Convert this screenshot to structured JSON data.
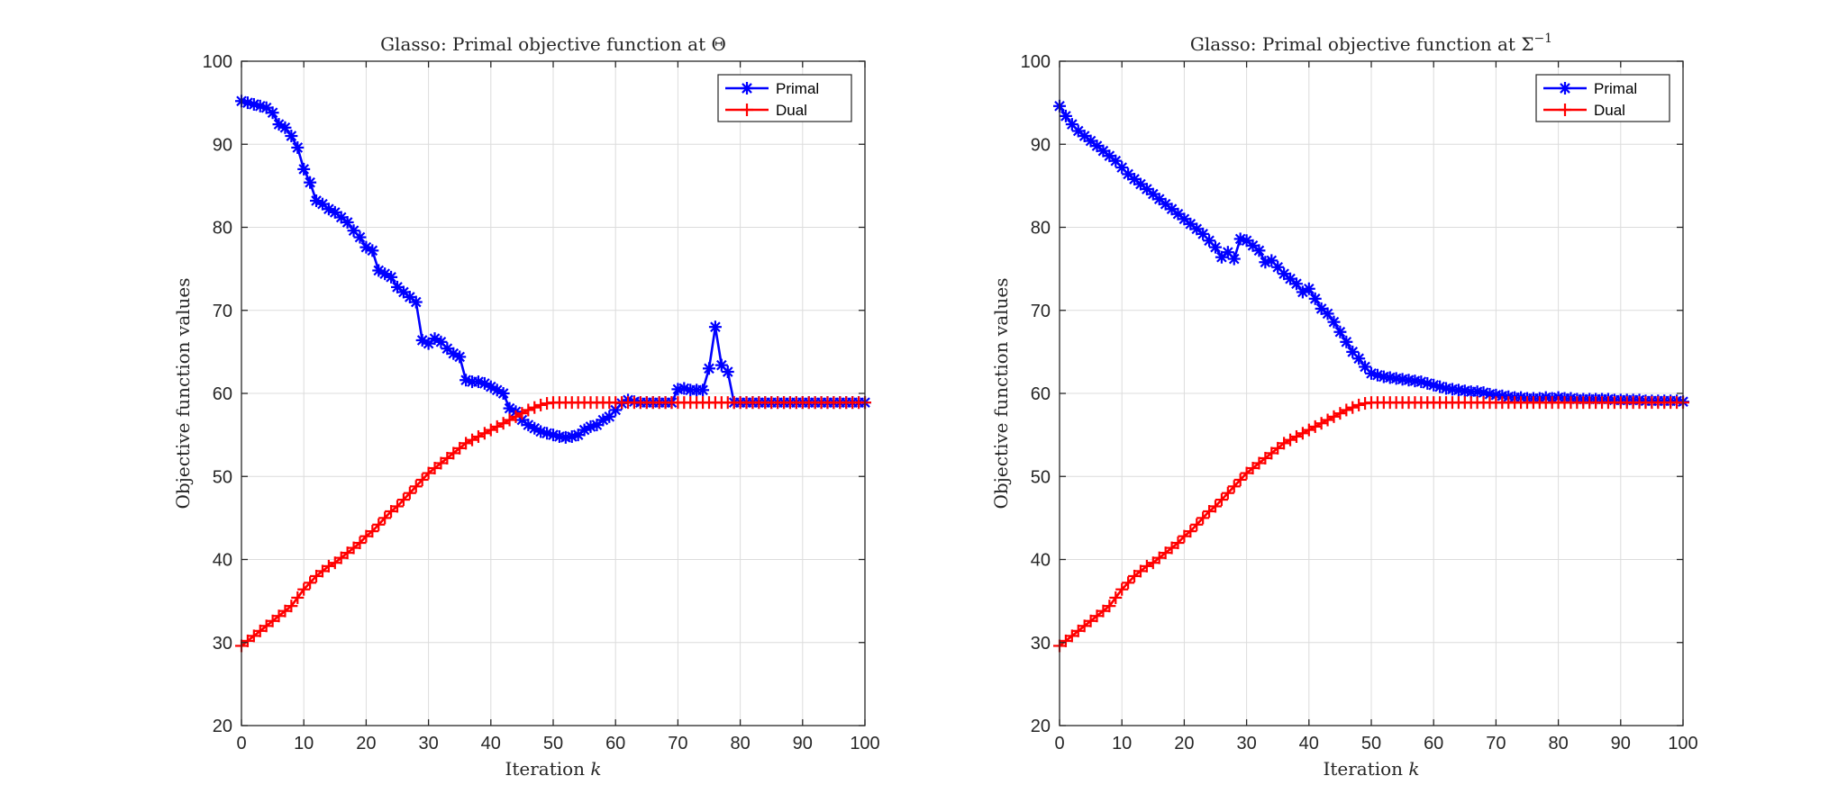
{
  "chart_data": [
    {
      "type": "line",
      "title": "Glasso: Primal objective function at Θ",
      "title_prefix": "Glasso: Primal objective function at ",
      "title_symbol": "Θ",
      "title_sup": "",
      "xlabel_prefix": "Iteration ",
      "xlabel_var": "k",
      "ylabel": "Objective function values",
      "xlim": [
        0,
        100
      ],
      "ylim": [
        20,
        100
      ],
      "xticks": [
        0,
        10,
        20,
        30,
        40,
        50,
        60,
        70,
        80,
        90,
        100
      ],
      "yticks": [
        20,
        30,
        40,
        50,
        60,
        70,
        80,
        90,
        100
      ],
      "grid": true,
      "legend_position": "top-right",
      "series": [
        {
          "name": "Primal",
          "color": "#0000ff",
          "marker": "asterisk",
          "x": [
            0,
            1,
            2,
            3,
            4,
            5,
            6,
            7,
            8,
            9,
            10,
            11,
            12,
            13,
            14,
            15,
            16,
            17,
            18,
            19,
            20,
            21,
            22,
            23,
            24,
            25,
            26,
            27,
            28,
            29,
            30,
            31,
            32,
            33,
            34,
            35,
            36,
            37,
            38,
            39,
            40,
            41,
            42,
            43,
            44,
            45,
            46,
            47,
            48,
            49,
            50,
            51,
            52,
            53,
            54,
            55,
            56,
            57,
            58,
            59,
            60,
            61,
            62,
            63,
            64,
            65,
            66,
            67,
            68,
            69,
            70,
            71,
            72,
            73,
            74,
            75,
            76,
            77,
            78,
            79,
            80,
            81,
            82,
            83,
            84,
            85,
            86,
            87,
            88,
            89,
            90,
            91,
            92,
            93,
            94,
            95,
            96,
            97,
            98,
            99,
            100
          ],
          "y": [
            95.2,
            95.0,
            94.8,
            94.6,
            94.4,
            93.8,
            92.4,
            92.0,
            91.0,
            89.6,
            87.0,
            85.4,
            83.2,
            82.8,
            82.2,
            81.8,
            81.2,
            80.6,
            79.6,
            78.8,
            77.6,
            77.2,
            74.8,
            74.4,
            74.0,
            72.8,
            72.2,
            71.6,
            71.0,
            66.4,
            66.0,
            66.6,
            66.2,
            65.4,
            64.8,
            64.4,
            61.6,
            61.4,
            61.4,
            61.2,
            60.8,
            60.4,
            60.0,
            58.2,
            57.8,
            56.8,
            56.2,
            55.8,
            55.4,
            55.2,
            55.0,
            54.8,
            54.7,
            54.8,
            55.0,
            55.6,
            56.0,
            56.2,
            56.8,
            57.2,
            58.0,
            58.8,
            59.2,
            59.0,
            58.9,
            58.9,
            58.9,
            58.9,
            58.9,
            58.9,
            60.5,
            60.6,
            60.4,
            60.4,
            60.4,
            63.0,
            68.0,
            63.4,
            62.6,
            58.9,
            58.9,
            58.9,
            58.9,
            58.9,
            58.9,
            58.9,
            58.9,
            58.9,
            58.9,
            58.9,
            58.9,
            58.9,
            58.9,
            58.9,
            58.9,
            58.9,
            58.9,
            58.9,
            58.9,
            58.9,
            58.9
          ]
        },
        {
          "name": "Dual",
          "color": "#ff0000",
          "marker": "plus",
          "x": [
            0,
            1,
            2,
            3,
            4,
            5,
            6,
            7,
            8,
            9,
            10,
            11,
            12,
            13,
            14,
            15,
            16,
            17,
            18,
            19,
            20,
            21,
            22,
            23,
            24,
            25,
            26,
            27,
            28,
            29,
            30,
            31,
            32,
            33,
            34,
            35,
            36,
            37,
            38,
            39,
            40,
            41,
            42,
            43,
            44,
            45,
            46,
            47,
            48,
            49,
            50,
            51,
            52,
            53,
            54,
            55,
            56,
            57,
            58,
            59,
            60,
            61,
            62,
            63,
            64,
            65,
            66,
            67,
            68,
            69,
            70,
            71,
            72,
            73,
            74,
            75,
            76,
            77,
            78,
            79,
            80,
            81,
            82,
            83,
            84,
            85,
            86,
            87,
            88,
            89,
            90,
            91,
            92,
            93,
            94,
            95,
            96,
            97,
            98,
            99,
            100
          ],
          "y": [
            29.6,
            30.2,
            30.8,
            31.4,
            32.0,
            32.6,
            33.2,
            33.8,
            34.4,
            35.4,
            36.4,
            37.2,
            38.0,
            38.6,
            39.2,
            39.6,
            40.2,
            40.8,
            41.4,
            42.0,
            42.8,
            43.4,
            44.2,
            45.0,
            45.8,
            46.4,
            47.2,
            48.0,
            48.8,
            49.6,
            50.4,
            51.0,
            51.6,
            52.2,
            52.8,
            53.4,
            54.0,
            54.4,
            54.8,
            55.2,
            55.6,
            56.0,
            56.4,
            56.8,
            57.2,
            57.6,
            58.0,
            58.3,
            58.6,
            58.8,
            58.9,
            58.9,
            58.9,
            58.9,
            58.9,
            58.9,
            58.9,
            58.9,
            58.9,
            58.9,
            58.9,
            58.9,
            58.9,
            58.9,
            58.9,
            58.9,
            58.9,
            58.9,
            58.9,
            58.9,
            58.9,
            58.9,
            58.9,
            58.9,
            58.9,
            58.9,
            58.9,
            58.9,
            58.9,
            58.9,
            58.9,
            58.9,
            58.9,
            58.9,
            58.9,
            58.9,
            58.9,
            58.9,
            58.9,
            58.9,
            58.9,
            58.9,
            58.9,
            58.9,
            58.9,
            58.9,
            58.9,
            58.9,
            58.9,
            58.9,
            58.9
          ]
        }
      ]
    },
    {
      "type": "line",
      "title": "Glasso: Primal objective function at Σ⁻¹",
      "title_prefix": "Glasso: Primal objective function at ",
      "title_symbol": "Σ",
      "title_sup": "−1",
      "xlabel_prefix": "Iteration ",
      "xlabel_var": "k",
      "ylabel": "Objective function values",
      "xlim": [
        0,
        100
      ],
      "ylim": [
        20,
        100
      ],
      "xticks": [
        0,
        10,
        20,
        30,
        40,
        50,
        60,
        70,
        80,
        90,
        100
      ],
      "yticks": [
        20,
        30,
        40,
        50,
        60,
        70,
        80,
        90,
        100
      ],
      "grid": true,
      "legend_position": "top-right",
      "series": [
        {
          "name": "Primal",
          "color": "#0000ff",
          "marker": "asterisk",
          "x": [
            0,
            1,
            2,
            3,
            4,
            5,
            6,
            7,
            8,
            9,
            10,
            11,
            12,
            13,
            14,
            15,
            16,
            17,
            18,
            19,
            20,
            21,
            22,
            23,
            24,
            25,
            26,
            27,
            28,
            29,
            30,
            31,
            32,
            33,
            34,
            35,
            36,
            37,
            38,
            39,
            40,
            41,
            42,
            43,
            44,
            45,
            46,
            47,
            48,
            49,
            50,
            51,
            52,
            53,
            54,
            55,
            56,
            57,
            58,
            59,
            60,
            61,
            62,
            63,
            64,
            65,
            66,
            67,
            68,
            69,
            70,
            71,
            72,
            73,
            74,
            75,
            76,
            77,
            78,
            79,
            80,
            81,
            82,
            83,
            84,
            85,
            86,
            87,
            88,
            89,
            90,
            91,
            92,
            93,
            94,
            95,
            96,
            97,
            98,
            99,
            100
          ],
          "y": [
            94.6,
            93.4,
            92.4,
            91.6,
            91.0,
            90.4,
            89.8,
            89.2,
            88.6,
            88.0,
            87.2,
            86.4,
            85.8,
            85.2,
            84.6,
            84.0,
            83.4,
            82.8,
            82.2,
            81.6,
            81.0,
            80.4,
            79.8,
            79.2,
            78.4,
            77.6,
            76.4,
            77.0,
            76.2,
            78.6,
            78.4,
            77.8,
            77.2,
            75.8,
            76.0,
            75.2,
            74.4,
            73.8,
            73.2,
            72.2,
            72.6,
            71.4,
            70.2,
            69.6,
            68.6,
            67.4,
            66.2,
            65.0,
            64.2,
            63.2,
            62.4,
            62.2,
            62.0,
            61.9,
            61.8,
            61.7,
            61.6,
            61.5,
            61.4,
            61.2,
            61.0,
            60.8,
            60.6,
            60.5,
            60.4,
            60.3,
            60.2,
            60.2,
            60.1,
            59.9,
            59.8,
            59.7,
            59.6,
            59.5,
            59.5,
            59.4,
            59.4,
            59.4,
            59.5,
            59.4,
            59.5,
            59.4,
            59.4,
            59.3,
            59.3,
            59.3,
            59.3,
            59.3,
            59.3,
            59.2,
            59.2,
            59.2,
            59.2,
            59.2,
            59.1,
            59.1,
            59.1,
            59.1,
            59.1,
            59.1,
            59.0
          ]
        },
        {
          "name": "Dual",
          "color": "#ff0000",
          "marker": "plus",
          "x": [
            0,
            1,
            2,
            3,
            4,
            5,
            6,
            7,
            8,
            9,
            10,
            11,
            12,
            13,
            14,
            15,
            16,
            17,
            18,
            19,
            20,
            21,
            22,
            23,
            24,
            25,
            26,
            27,
            28,
            29,
            30,
            31,
            32,
            33,
            34,
            35,
            36,
            37,
            38,
            39,
            40,
            41,
            42,
            43,
            44,
            45,
            46,
            47,
            48,
            49,
            50,
            51,
            52,
            53,
            54,
            55,
            56,
            57,
            58,
            59,
            60,
            61,
            62,
            63,
            64,
            65,
            66,
            67,
            68,
            69,
            70,
            71,
            72,
            73,
            74,
            75,
            76,
            77,
            78,
            79,
            80,
            81,
            82,
            83,
            84,
            85,
            86,
            87,
            88,
            89,
            90,
            91,
            92,
            93,
            94,
            95,
            96,
            97,
            98,
            99,
            100
          ],
          "y": [
            29.6,
            30.2,
            30.8,
            31.4,
            32.0,
            32.6,
            33.2,
            33.8,
            34.4,
            35.4,
            36.4,
            37.2,
            38.0,
            38.6,
            39.2,
            39.6,
            40.2,
            40.8,
            41.4,
            42.0,
            42.8,
            43.4,
            44.2,
            45.0,
            45.8,
            46.4,
            47.2,
            48.0,
            48.8,
            49.6,
            50.4,
            51.0,
            51.6,
            52.2,
            52.8,
            53.4,
            54.0,
            54.4,
            54.8,
            55.2,
            55.6,
            56.0,
            56.4,
            56.8,
            57.2,
            57.6,
            58.0,
            58.3,
            58.6,
            58.8,
            58.9,
            58.9,
            58.9,
            58.9,
            58.9,
            58.9,
            58.9,
            58.9,
            58.9,
            58.9,
            58.9,
            58.9,
            58.9,
            58.9,
            58.9,
            58.9,
            58.9,
            58.9,
            58.9,
            58.9,
            58.9,
            58.9,
            58.9,
            58.9,
            58.9,
            58.9,
            58.9,
            58.9,
            58.9,
            58.9,
            58.9,
            58.9,
            58.9,
            58.9,
            58.9,
            58.9,
            58.9,
            58.9,
            58.9,
            58.9,
            58.9,
            58.9,
            58.9,
            58.9,
            58.9,
            58.9,
            58.9,
            58.9,
            58.9,
            58.9,
            58.9
          ]
        }
      ]
    }
  ]
}
